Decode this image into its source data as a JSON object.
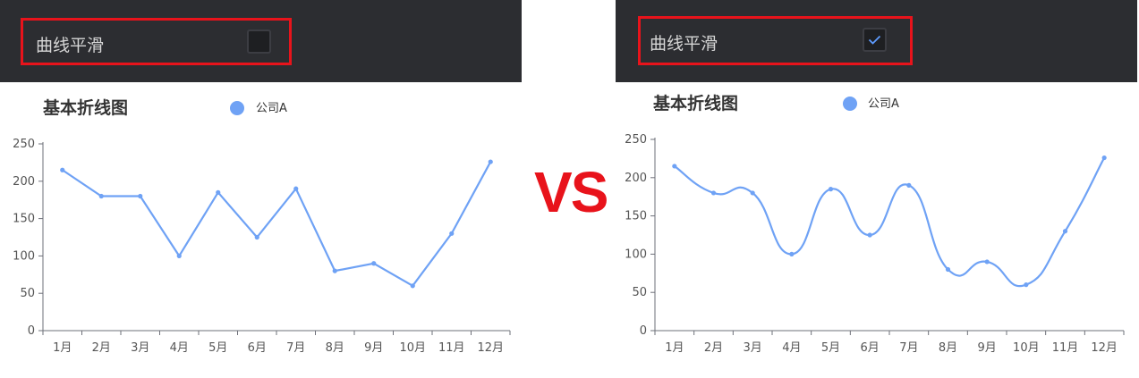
{
  "vs_label": "VS",
  "colors": {
    "toolbar_bg": "#2c2d31",
    "highlight": "#e8131b",
    "series": "#6fa2f5",
    "check": "#5e9bff"
  },
  "panels": [
    {
      "toggle_label": "曲线平滑",
      "checked": false
    },
    {
      "toggle_label": "曲线平滑",
      "checked": true
    }
  ],
  "chart_data": [
    {
      "type": "line",
      "title": "基本折线图",
      "smooth": false,
      "categories": [
        "1月",
        "2月",
        "3月",
        "4月",
        "5月",
        "6月",
        "7月",
        "8月",
        "9月",
        "10月",
        "11月",
        "12月"
      ],
      "series": [
        {
          "name": "公司A",
          "values": [
            215,
            180,
            180,
            100,
            185,
            125,
            190,
            80,
            90,
            60,
            130,
            226
          ]
        }
      ],
      "yticks": [
        0,
        50,
        100,
        150,
        200,
        250
      ],
      "ylim": [
        0,
        250
      ],
      "legend": "top-center",
      "grid": false
    },
    {
      "type": "line",
      "title": "基本折线图",
      "smooth": true,
      "categories": [
        "1月",
        "2月",
        "3月",
        "4月",
        "5月",
        "6月",
        "7月",
        "8月",
        "9月",
        "10月",
        "11月",
        "12月"
      ],
      "series": [
        {
          "name": "公司A",
          "values": [
            215,
            180,
            180,
            100,
            185,
            125,
            190,
            80,
            90,
            60,
            130,
            226
          ]
        }
      ],
      "yticks": [
        0,
        50,
        100,
        150,
        200,
        250
      ],
      "ylim": [
        0,
        250
      ],
      "legend": "top-center",
      "grid": false
    }
  ]
}
